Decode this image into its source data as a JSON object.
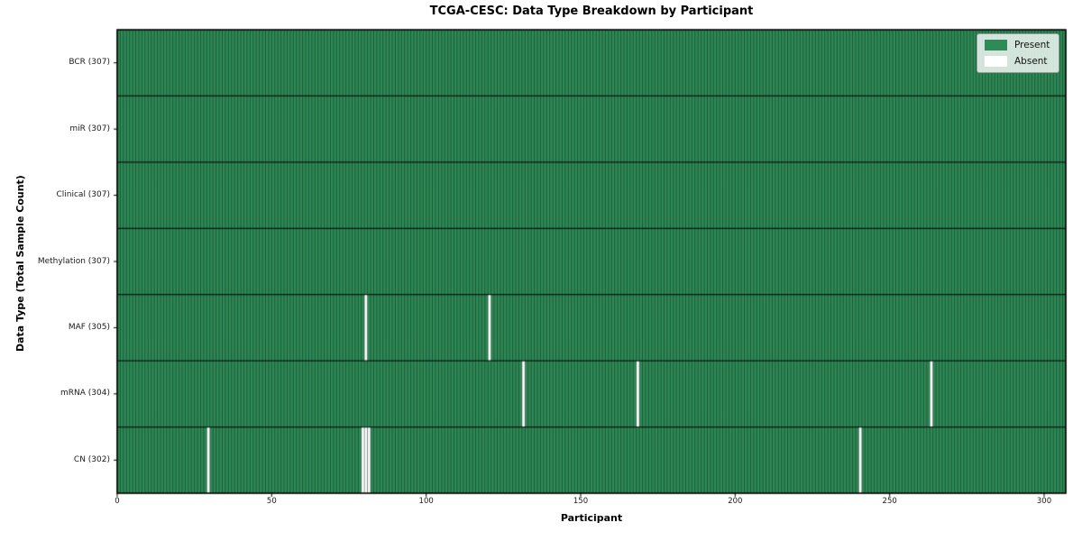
{
  "chart_data": {
    "type": "heatmap",
    "title": "TCGA-CESC: Data Type Breakdown by Participant",
    "xlabel": "Participant",
    "ylabel": "Data Type (Total Sample Count)",
    "n_participants": 307,
    "x_ticks": [
      0,
      50,
      100,
      150,
      200,
      250,
      300
    ],
    "rows": [
      {
        "label": "BCR (307)",
        "present_count": 307,
        "absent_participants": []
      },
      {
        "label": "miR (307)",
        "present_count": 307,
        "absent_participants": []
      },
      {
        "label": "Clinical (307)",
        "present_count": 307,
        "absent_participants": []
      },
      {
        "label": "Methylation (307)",
        "present_count": 307,
        "absent_participants": []
      },
      {
        "label": "MAF (305)",
        "present_count": 305,
        "absent_participants": [
          80,
          120
        ]
      },
      {
        "label": "mRNA (304)",
        "present_count": 304,
        "absent_participants": [
          131,
          168,
          263
        ]
      },
      {
        "label": "CN (302)",
        "present_count": 302,
        "absent_participants": [
          29,
          79,
          80,
          81,
          240
        ]
      }
    ],
    "legend": [
      {
        "label": "Present",
        "color": "#2e8b57"
      },
      {
        "label": "Absent",
        "color": "#ffffff"
      }
    ],
    "colors": {
      "present": "#2e8b57",
      "absent": "#ffffff",
      "cell_border": "rgba(0,0,0,0.5)",
      "row_separator": "rgba(0,0,0,0.8)",
      "spine": "#000000"
    },
    "legend_position": "upper right",
    "grid": "cell-borders"
  }
}
